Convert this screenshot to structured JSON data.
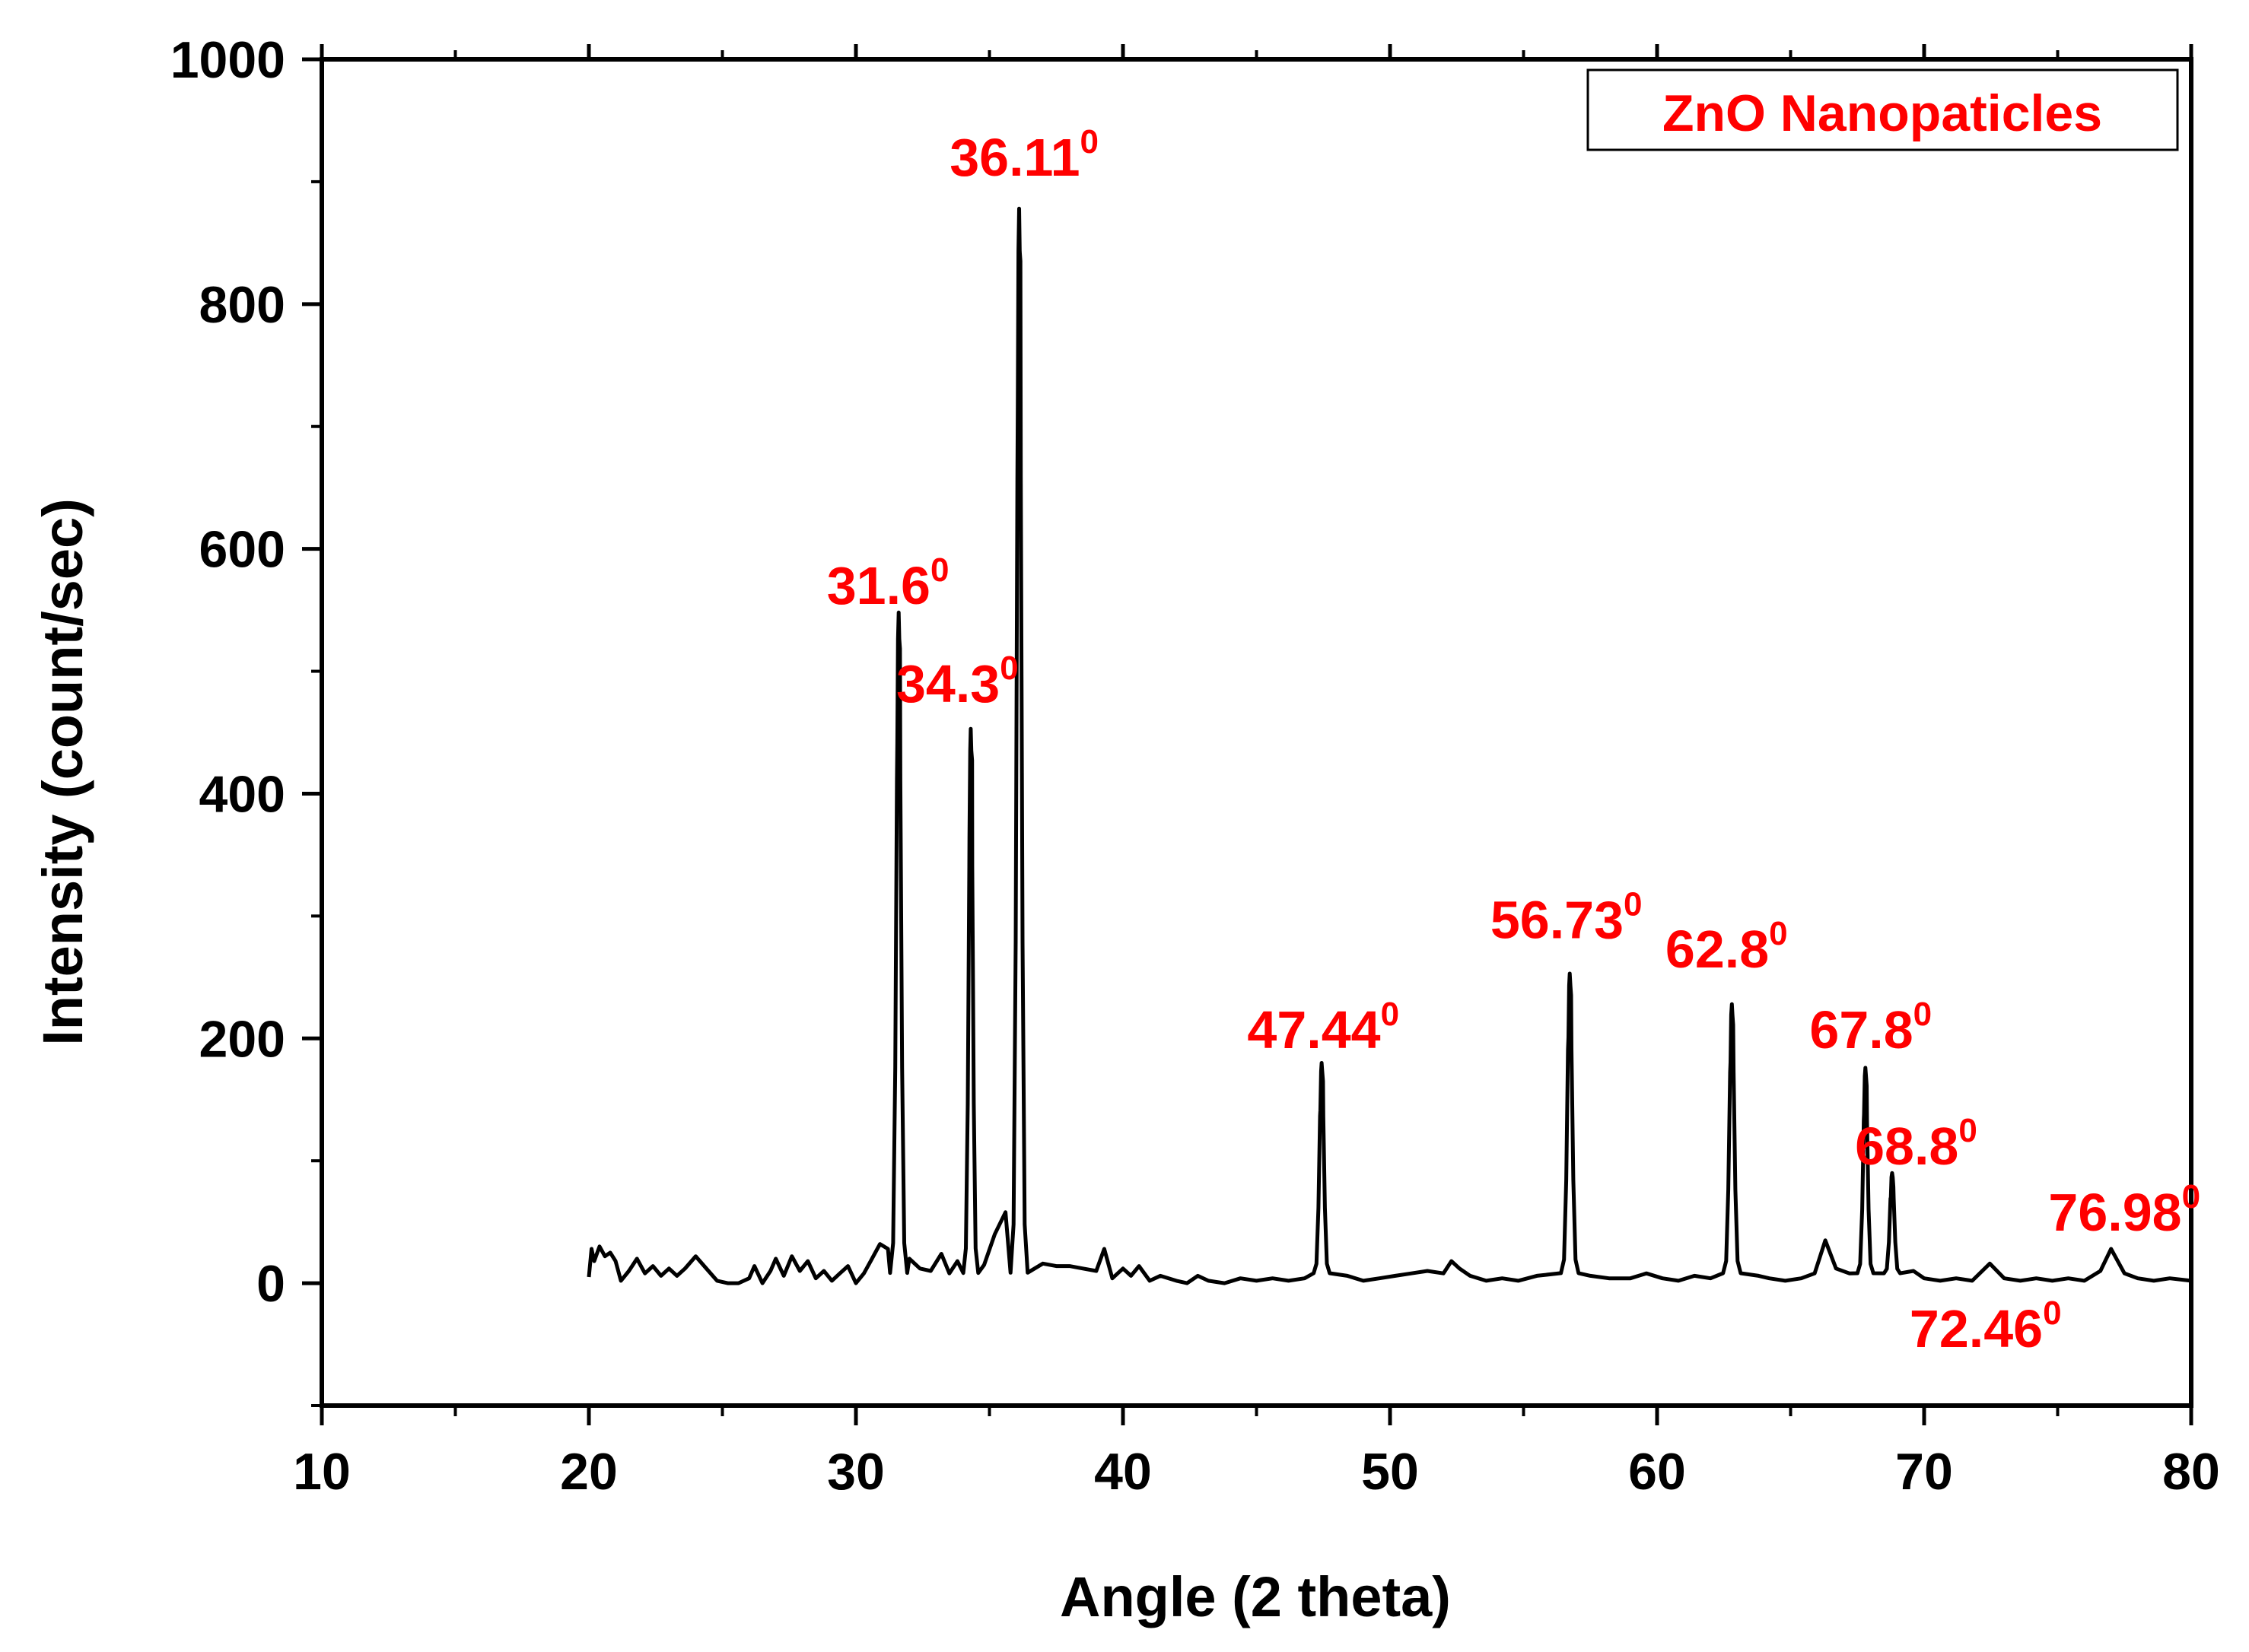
{
  "chart_data": {
    "type": "line",
    "title": "",
    "xlabel": "Angle (2 theta)",
    "ylabel": "Intensity (count/sec)",
    "xlim": [
      10,
      80
    ],
    "ylim": [
      -100,
      1000
    ],
    "x_ticks": [
      10,
      20,
      30,
      40,
      50,
      60,
      70,
      80
    ],
    "y_ticks": [
      0,
      200,
      400,
      600,
      800,
      1000
    ],
    "x_tick_labels": [
      "10",
      "20",
      "30",
      "40",
      "50",
      "60",
      "70",
      "80"
    ],
    "y_tick_labels": [
      "0",
      "200",
      "400",
      "600",
      "800",
      "1000"
    ],
    "grid": false,
    "legend": {
      "entries": [
        "ZnO Nanopaticles"
      ],
      "placement": "top-right"
    },
    "series": [
      {
        "name": "ZnO Nanopaticles",
        "color": "#000000",
        "baseline": [
          [
            20.0,
            5
          ],
          [
            20.1,
            28
          ],
          [
            20.2,
            18
          ],
          [
            20.4,
            30
          ],
          [
            20.6,
            22
          ],
          [
            20.8,
            25
          ],
          [
            21.0,
            18
          ],
          [
            21.2,
            2
          ],
          [
            21.5,
            10
          ],
          [
            21.8,
            20
          ],
          [
            22.1,
            8
          ],
          [
            22.4,
            14
          ],
          [
            22.7,
            6
          ],
          [
            23.0,
            12
          ],
          [
            23.3,
            6
          ],
          [
            23.6,
            12
          ],
          [
            24.0,
            22
          ],
          [
            24.4,
            12
          ],
          [
            24.8,
            2
          ],
          [
            25.2,
            0
          ],
          [
            25.6,
            0
          ],
          [
            26.0,
            4
          ],
          [
            26.2,
            14
          ],
          [
            26.5,
            0
          ],
          [
            26.8,
            10
          ],
          [
            27.0,
            20
          ],
          [
            27.3,
            6
          ],
          [
            27.6,
            22
          ],
          [
            27.9,
            10
          ],
          [
            28.2,
            18
          ],
          [
            28.5,
            4
          ],
          [
            28.8,
            10
          ],
          [
            29.1,
            2
          ],
          [
            29.4,
            8
          ],
          [
            29.7,
            14
          ],
          [
            30.0,
            0
          ],
          [
            30.3,
            8
          ],
          [
            30.6,
            20
          ],
          [
            30.9,
            32
          ],
          [
            31.2,
            28
          ],
          [
            32.0,
            20
          ],
          [
            32.4,
            12
          ],
          [
            32.8,
            10
          ],
          [
            33.2,
            24
          ],
          [
            33.5,
            8
          ],
          [
            33.8,
            18
          ],
          [
            34.8,
            15
          ],
          [
            35.2,
            40
          ],
          [
            35.6,
            58
          ],
          [
            37.0,
            16
          ],
          [
            37.5,
            14
          ],
          [
            38.0,
            14
          ],
          [
            38.5,
            12
          ],
          [
            39.0,
            10
          ],
          [
            39.3,
            28
          ],
          [
            39.6,
            4
          ],
          [
            40.0,
            12
          ],
          [
            40.3,
            6
          ],
          [
            40.6,
            14
          ],
          [
            41.0,
            2
          ],
          [
            41.4,
            6
          ],
          [
            42.0,
            2
          ],
          [
            42.4,
            0
          ],
          [
            42.8,
            6
          ],
          [
            43.2,
            2
          ],
          [
            43.8,
            0
          ],
          [
            44.4,
            4
          ],
          [
            45.0,
            2
          ],
          [
            45.6,
            4
          ],
          [
            46.2,
            2
          ],
          [
            46.8,
            4
          ],
          [
            48.4,
            6
          ],
          [
            49.0,
            2
          ],
          [
            49.6,
            4
          ],
          [
            50.2,
            6
          ],
          [
            50.8,
            8
          ],
          [
            51.4,
            10
          ],
          [
            52.0,
            8
          ],
          [
            52.3,
            18
          ],
          [
            52.6,
            12
          ],
          [
            53.0,
            6
          ],
          [
            53.6,
            2
          ],
          [
            54.2,
            4
          ],
          [
            54.8,
            2
          ],
          [
            55.5,
            6
          ],
          [
            57.5,
            6
          ],
          [
            58.2,
            4
          ],
          [
            59.0,
            4
          ],
          [
            59.6,
            8
          ],
          [
            60.2,
            4
          ],
          [
            60.8,
            2
          ],
          [
            61.4,
            6
          ],
          [
            62.0,
            4
          ],
          [
            63.8,
            6
          ],
          [
            64.2,
            4
          ],
          [
            64.8,
            2
          ],
          [
            65.4,
            4
          ],
          [
            65.9,
            8
          ],
          [
            66.3,
            35
          ],
          [
            66.7,
            12
          ],
          [
            67.2,
            8
          ],
          [
            69.6,
            10
          ],
          [
            70.0,
            4
          ],
          [
            70.6,
            2
          ],
          [
            71.2,
            4
          ],
          [
            71.8,
            2
          ],
          [
            72.46,
            16
          ],
          [
            73.0,
            4
          ],
          [
            73.6,
            2
          ],
          [
            74.2,
            4
          ],
          [
            74.8,
            2
          ],
          [
            75.4,
            4
          ],
          [
            76.0,
            2
          ],
          [
            76.6,
            10
          ],
          [
            77.0,
            28
          ],
          [
            77.5,
            8
          ],
          [
            78.0,
            4
          ],
          [
            78.6,
            2
          ],
          [
            79.2,
            4
          ],
          [
            80.0,
            2
          ]
        ],
        "peaks": [
          {
            "x": 31.6,
            "y": 540,
            "width": 0.32
          },
          {
            "x": 34.3,
            "y": 445,
            "width": 0.28
          },
          {
            "x": 36.11,
            "y": 870,
            "width": 0.32
          },
          {
            "x": 47.44,
            "y": 172,
            "width": 0.3
          },
          {
            "x": 56.73,
            "y": 245,
            "width": 0.33
          },
          {
            "x": 62.8,
            "y": 220,
            "width": 0.33
          },
          {
            "x": 67.8,
            "y": 168,
            "width": 0.3
          },
          {
            "x": 68.8,
            "y": 82,
            "width": 0.3
          }
        ]
      }
    ],
    "annotations": [
      {
        "text": "36.11",
        "sup": "0",
        "x": 36.3,
        "y": 905
      },
      {
        "text": "31.6",
        "sup": "0",
        "x": 31.2,
        "y": 555
      },
      {
        "text": "34.3",
        "sup": "0",
        "x": 33.8,
        "y": 475
      },
      {
        "text": "47.44",
        "sup": "0",
        "x": 47.5,
        "y": 192
      },
      {
        "text": "56.73",
        "sup": "0",
        "x": 56.6,
        "y": 282
      },
      {
        "text": "62.8",
        "sup": "0",
        "x": 62.6,
        "y": 258
      },
      {
        "text": "67.8",
        "sup": "0",
        "x": 68.0,
        "y": 192
      },
      {
        "text": "68.8",
        "sup": "0",
        "x": 69.7,
        "y": 97
      },
      {
        "text": "76.98",
        "sup": "0",
        "x": 77.5,
        "y": 43
      },
      {
        "text": "72.46",
        "sup": "0",
        "x": 72.3,
        "y": -52
      }
    ]
  },
  "colors": {
    "axis": "#000000",
    "curve": "#000000",
    "label": "#ff0000"
  }
}
